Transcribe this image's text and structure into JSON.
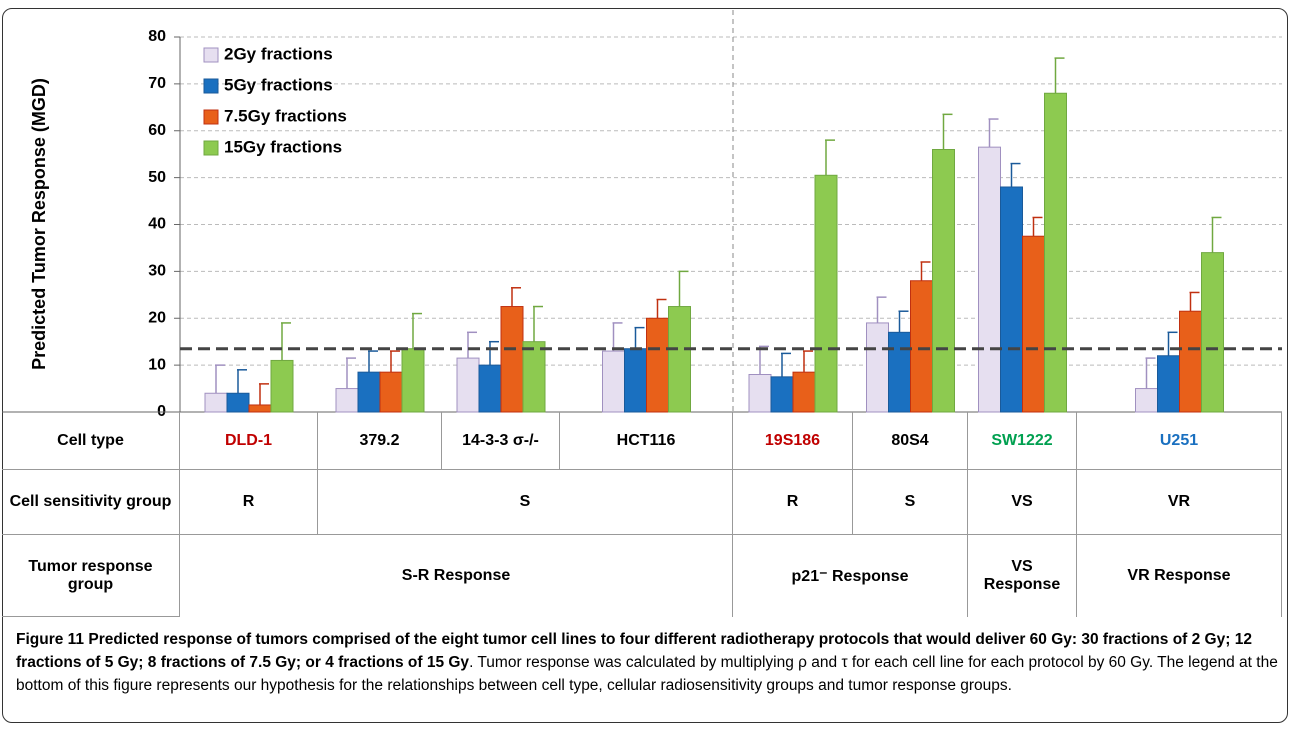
{
  "chart_data": {
    "type": "bar",
    "y_label": "Predicted Tumor Response (MGD)",
    "categories": [
      "DLD-1",
      "379.2",
      "14-3-3 σ-/-",
      "HCT116",
      "19S186",
      "80S4",
      "SW1222",
      "U251"
    ],
    "category_colors": [
      "#c00000",
      "#000000",
      "#000000",
      "#000000",
      "#c00000",
      "#000000",
      "#00a050",
      "#1a70c0"
    ],
    "series": [
      {
        "name": "2Gy fractions",
        "color": "#e6dff0",
        "edge": "#a090c0",
        "values": [
          4,
          5,
          11.5,
          13,
          8,
          19,
          56.5,
          5
        ],
        "errors": [
          6,
          6.5,
          5.5,
          6,
          6,
          5.5,
          6,
          6.5
        ]
      },
      {
        "name": "5Gy fractions",
        "color": "#1a70c0",
        "edge": "#1a5a9a",
        "values": [
          4,
          8.5,
          10,
          13.5,
          7.5,
          17,
          48,
          12
        ],
        "errors": [
          5,
          4.5,
          5,
          4.5,
          5,
          4.5,
          5,
          5
        ]
      },
      {
        "name": "7.5Gy fractions",
        "color": "#e8601a",
        "edge": "#c03010",
        "values": [
          1.5,
          8.5,
          22.5,
          20,
          8.5,
          28,
          37.5,
          21.5
        ],
        "errors": [
          4.5,
          4.5,
          4,
          4,
          4.5,
          4,
          4,
          4
        ]
      },
      {
        "name": "15Gy fractions",
        "color": "#8dca50",
        "edge": "#70a840",
        "values": [
          11,
          13.5,
          15,
          22.5,
          50.5,
          56,
          68,
          34
        ],
        "errors": [
          8,
          7.5,
          7.5,
          7.5,
          7.5,
          7.5,
          7.5,
          7.5
        ]
      }
    ],
    "threshold": 13.5,
    "ylim": [
      0,
      80
    ],
    "yticks": [
      0,
      10,
      20,
      30,
      40,
      50,
      60,
      70,
      80
    ],
    "grid": true,
    "legend": "upper left"
  },
  "table": {
    "row_headers": [
      "Cell type",
      "Cell sensitivity group",
      "Tumor response group"
    ],
    "sensitivity_groups": [
      "R",
      "S",
      "R",
      "S",
      "VS",
      "VR"
    ],
    "response_groups": [
      "S-R Response",
      "p21⁻ Response",
      "VS Response",
      "VR Response"
    ]
  },
  "caption": {
    "bold": "Figure 11 Predicted response of tumors comprised of the eight tumor cell lines to four different radiotherapy protocols that would deliver 60 Gy: 30 fractions of 2 Gy; 12 fractions of 5 Gy; 8 fractions of 7.5 Gy; or 4 fractions of 15 Gy",
    "text": ". Tumor response was calculated by multiplying ρ and τ for each cell line for each protocol by 60 Gy. The legend at the bottom of this figure represents our hypothesis for the relationships between cell type, cellular radiosensitivity groups and tumor response groups."
  }
}
